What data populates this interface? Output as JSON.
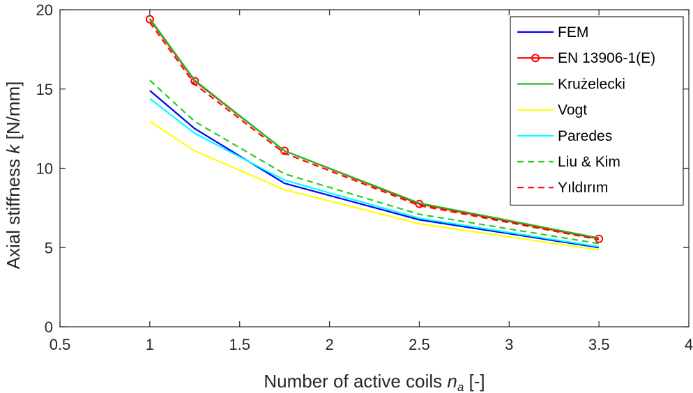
{
  "chart_data": {
    "type": "line",
    "x_axis": {
      "label_prefix": "Number of active coils",
      "label_symbol": "n",
      "label_subscript": "a",
      "label_suffix": "[-]",
      "lim": [
        0.5,
        4
      ],
      "ticks": [
        0.5,
        1,
        1.5,
        2,
        2.5,
        3,
        3.5,
        4
      ],
      "tick_labels": [
        "0.5",
        "1",
        "1.5",
        "2",
        "2.5",
        "3",
        "3.5",
        "4"
      ]
    },
    "y_axis": {
      "label_prefix": "Axial stiffness",
      "label_symbol": "k",
      "label_suffix": "[N/mm]",
      "lim": [
        0,
        20
      ],
      "ticks": [
        0,
        5,
        10,
        15,
        20
      ],
      "tick_labels": [
        "0",
        "5",
        "10",
        "15",
        "20"
      ]
    },
    "x": [
      1,
      1.25,
      1.75,
      2.5,
      3.5
    ],
    "series": [
      {
        "name": "FEM",
        "values": [
          14.9,
          12.5,
          9.05,
          6.75,
          5.0
        ],
        "color": "#0000ff",
        "dash": "solid",
        "marker": false
      },
      {
        "name": "EN 13906-1(E)",
        "values": [
          19.4,
          15.5,
          11.1,
          7.75,
          5.55
        ],
        "color": "#ff0000",
        "dash": "solid",
        "marker": true
      },
      {
        "name": "Krużelecki",
        "values": [
          19.45,
          15.55,
          11.1,
          7.8,
          5.6
        ],
        "color": "#22bb22",
        "dash": "solid",
        "marker": false
      },
      {
        "name": "Vogt",
        "values": [
          12.95,
          11.1,
          8.65,
          6.5,
          4.85
        ],
        "color": "#ffff00",
        "dash": "solid",
        "marker": false
      },
      {
        "name": "Paredes",
        "values": [
          14.4,
          12.2,
          9.25,
          6.85,
          5.05
        ],
        "color": "#00ffff",
        "dash": "solid",
        "marker": false
      },
      {
        "name": "Liu & Kim",
        "values": [
          15.55,
          12.95,
          9.65,
          7.1,
          5.25
        ],
        "color": "#22cc22",
        "dash": "dashed",
        "marker": false
      },
      {
        "name": "Yıldırım",
        "values": [
          19.2,
          15.3,
          10.95,
          7.65,
          5.5
        ],
        "color": "#ff0000",
        "dash": "dashed",
        "marker": false
      }
    ],
    "legend_position": "top-right",
    "grid": false
  }
}
